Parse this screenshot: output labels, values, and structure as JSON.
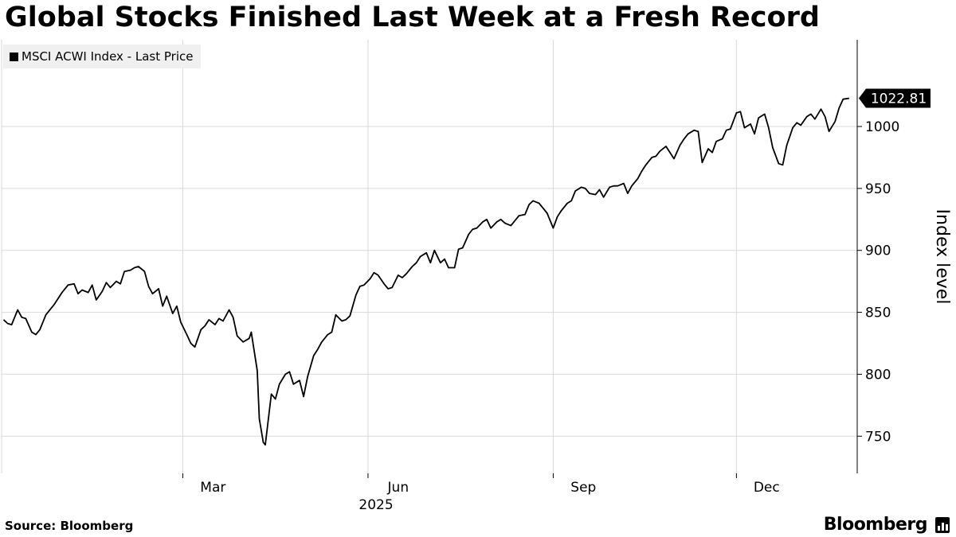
{
  "title": "Global Stocks Finished Last Week at a Fresh Record",
  "source": "Source: Bloomberg",
  "brand": "Bloomberg",
  "chart_data": {
    "type": "line",
    "title": "Global Stocks Finished Last Week at a Fresh Record",
    "xlabel": "2025",
    "ylabel": "Index level",
    "ylim": [
      720,
      1070
    ],
    "yticks": [
      750,
      800,
      850,
      900,
      950,
      1000
    ],
    "xticks": [
      {
        "label": "Mar",
        "date": "2025-03-01"
      },
      {
        "label": "Jun",
        "date": "2025-06-01"
      },
      {
        "label": "Sep",
        "date": "2025-09-01"
      },
      {
        "label": "Dec",
        "date": "2025-12-01"
      }
    ],
    "year_label": "2025",
    "grid": true,
    "legend_position": "top-left",
    "last_value_label": "1022.81",
    "series": [
      {
        "name": "MSCI ACWI Index - Last Price",
        "color": "#000000",
        "points": [
          [
            "2024-12-02",
            844
          ],
          [
            "2024-12-04",
            841
          ],
          [
            "2024-12-06",
            840
          ],
          [
            "2024-12-09",
            852
          ],
          [
            "2024-12-11",
            846
          ],
          [
            "2024-12-13",
            845
          ],
          [
            "2024-12-16",
            834
          ],
          [
            "2024-12-18",
            832
          ],
          [
            "2024-12-20",
            836
          ],
          [
            "2024-12-23",
            848
          ],
          [
            "2024-12-27",
            856
          ],
          [
            "2024-12-31",
            866
          ],
          [
            "2025-01-03",
            872
          ],
          [
            "2025-01-06",
            873
          ],
          [
            "2025-01-08",
            865
          ],
          [
            "2025-01-10",
            868
          ],
          [
            "2025-01-13",
            866
          ],
          [
            "2025-01-15",
            872
          ],
          [
            "2025-01-17",
            860
          ],
          [
            "2025-01-20",
            867
          ],
          [
            "2025-01-22",
            874
          ],
          [
            "2025-01-24",
            870
          ],
          [
            "2025-01-27",
            875
          ],
          [
            "2025-01-29",
            873
          ],
          [
            "2025-01-31",
            883
          ],
          [
            "2025-02-03",
            884
          ],
          [
            "2025-02-05",
            886
          ],
          [
            "2025-02-07",
            887
          ],
          [
            "2025-02-10",
            883
          ],
          [
            "2025-02-12",
            871
          ],
          [
            "2025-02-14",
            865
          ],
          [
            "2025-02-17",
            869
          ],
          [
            "2025-02-19",
            855
          ],
          [
            "2025-02-21",
            863
          ],
          [
            "2025-02-24",
            849
          ],
          [
            "2025-02-26",
            855
          ],
          [
            "2025-02-28",
            842
          ],
          [
            "2025-03-03",
            832
          ],
          [
            "2025-03-05",
            825
          ],
          [
            "2025-03-07",
            822
          ],
          [
            "2025-03-10",
            836
          ],
          [
            "2025-03-12",
            839
          ],
          [
            "2025-03-14",
            844
          ],
          [
            "2025-03-17",
            840
          ],
          [
            "2025-03-19",
            845
          ],
          [
            "2025-03-21",
            843
          ],
          [
            "2025-03-24",
            852
          ],
          [
            "2025-03-26",
            846
          ],
          [
            "2025-03-28",
            831
          ],
          [
            "2025-03-31",
            826
          ],
          [
            "2025-04-03",
            829
          ],
          [
            "2025-04-04",
            834
          ],
          [
            "2025-04-07",
            803
          ],
          [
            "2025-04-08",
            764
          ],
          [
            "2025-04-10",
            745
          ],
          [
            "2025-04-11",
            743
          ],
          [
            "2025-04-14",
            784
          ],
          [
            "2025-04-16",
            780
          ],
          [
            "2025-04-18",
            792
          ],
          [
            "2025-04-21",
            800
          ],
          [
            "2025-04-23",
            802
          ],
          [
            "2025-04-25",
            792
          ],
          [
            "2025-04-28",
            795
          ],
          [
            "2025-04-30",
            782
          ],
          [
            "2025-05-02",
            798
          ],
          [
            "2025-05-05",
            815
          ],
          [
            "2025-05-07",
            820
          ],
          [
            "2025-05-09",
            826
          ],
          [
            "2025-05-12",
            832
          ],
          [
            "2025-05-14",
            834
          ],
          [
            "2025-05-16",
            848
          ],
          [
            "2025-05-19",
            843
          ],
          [
            "2025-05-21",
            844
          ],
          [
            "2025-05-23",
            847
          ],
          [
            "2025-05-26",
            864
          ],
          [
            "2025-05-28",
            871
          ],
          [
            "2025-05-30",
            872
          ],
          [
            "2025-06-02",
            877
          ],
          [
            "2025-06-04",
            882
          ],
          [
            "2025-06-06",
            880
          ],
          [
            "2025-06-09",
            873
          ],
          [
            "2025-06-11",
            869
          ],
          [
            "2025-06-13",
            870
          ],
          [
            "2025-06-16",
            880
          ],
          [
            "2025-06-18",
            878
          ],
          [
            "2025-06-20",
            881
          ],
          [
            "2025-06-23",
            887
          ],
          [
            "2025-06-25",
            890
          ],
          [
            "2025-06-27",
            895
          ],
          [
            "2025-06-30",
            898
          ],
          [
            "2025-07-02",
            890
          ],
          [
            "2025-07-04",
            900
          ],
          [
            "2025-07-07",
            890
          ],
          [
            "2025-07-09",
            893
          ],
          [
            "2025-07-11",
            886
          ],
          [
            "2025-07-14",
            886
          ],
          [
            "2025-07-16",
            901
          ],
          [
            "2025-07-18",
            902
          ],
          [
            "2025-07-21",
            913
          ],
          [
            "2025-07-23",
            917
          ],
          [
            "2025-07-25",
            918
          ],
          [
            "2025-07-28",
            923
          ],
          [
            "2025-07-30",
            925
          ],
          [
            "2025-08-01",
            918
          ],
          [
            "2025-08-04",
            923
          ],
          [
            "2025-08-06",
            925
          ],
          [
            "2025-08-08",
            922
          ],
          [
            "2025-08-11",
            920
          ],
          [
            "2025-08-13",
            924
          ],
          [
            "2025-08-15",
            928
          ],
          [
            "2025-08-18",
            929
          ],
          [
            "2025-08-20",
            937
          ],
          [
            "2025-08-22",
            940
          ],
          [
            "2025-08-25",
            938
          ],
          [
            "2025-08-27",
            934
          ],
          [
            "2025-08-29",
            930
          ],
          [
            "2025-09-01",
            918
          ],
          [
            "2025-09-03",
            927
          ],
          [
            "2025-09-05",
            932
          ],
          [
            "2025-09-08",
            938
          ],
          [
            "2025-09-10",
            940
          ],
          [
            "2025-09-12",
            948
          ],
          [
            "2025-09-15",
            951
          ],
          [
            "2025-09-17",
            950
          ],
          [
            "2025-09-19",
            946
          ],
          [
            "2025-09-22",
            945
          ],
          [
            "2025-09-24",
            949
          ],
          [
            "2025-09-26",
            943
          ],
          [
            "2025-09-29",
            951
          ],
          [
            "2025-10-01",
            952
          ],
          [
            "2025-10-03",
            952
          ],
          [
            "2025-10-06",
            954
          ],
          [
            "2025-10-08",
            946
          ],
          [
            "2025-10-10",
            952
          ],
          [
            "2025-10-13",
            958
          ],
          [
            "2025-10-15",
            964
          ],
          [
            "2025-10-17",
            969
          ],
          [
            "2025-10-20",
            975
          ],
          [
            "2025-10-22",
            976
          ],
          [
            "2025-10-24",
            980
          ],
          [
            "2025-10-27",
            984
          ],
          [
            "2025-10-29",
            979
          ],
          [
            "2025-10-31",
            974
          ],
          [
            "2025-11-03",
            985
          ],
          [
            "2025-11-05",
            990
          ],
          [
            "2025-11-07",
            994
          ],
          [
            "2025-11-10",
            997
          ],
          [
            "2025-11-12",
            996
          ],
          [
            "2025-11-14",
            971
          ],
          [
            "2025-11-17",
            982
          ],
          [
            "2025-11-19",
            979
          ],
          [
            "2025-11-21",
            988
          ],
          [
            "2025-11-24",
            990
          ],
          [
            "2025-11-26",
            997
          ],
          [
            "2025-11-28",
            998
          ],
          [
            "2025-12-01",
            1011
          ],
          [
            "2025-12-03",
            1012
          ],
          [
            "2025-12-05",
            999
          ],
          [
            "2025-12-08",
            1002
          ],
          [
            "2025-12-10",
            994
          ],
          [
            "2025-12-12",
            1007
          ],
          [
            "2025-12-15",
            1010
          ],
          [
            "2025-12-17",
            999
          ],
          [
            "2025-12-19",
            983
          ],
          [
            "2025-12-22",
            970
          ],
          [
            "2025-12-24",
            969
          ],
          [
            "2025-12-26",
            985
          ],
          [
            "2025-12-29",
            999
          ],
          [
            "2025-12-31",
            1003
          ],
          [
            "2026-01-02",
            1001
          ],
          [
            "2026-01-05",
            1008
          ],
          [
            "2026-01-07",
            1010
          ],
          [
            "2026-01-09",
            1006
          ],
          [
            "2026-01-12",
            1014
          ],
          [
            "2026-01-14",
            1008
          ],
          [
            "2026-01-16",
            996
          ],
          [
            "2026-01-19",
            1004
          ],
          [
            "2026-01-21",
            1015
          ],
          [
            "2026-01-23",
            1022
          ],
          [
            "2026-01-26",
            1022.81
          ]
        ]
      }
    ]
  }
}
